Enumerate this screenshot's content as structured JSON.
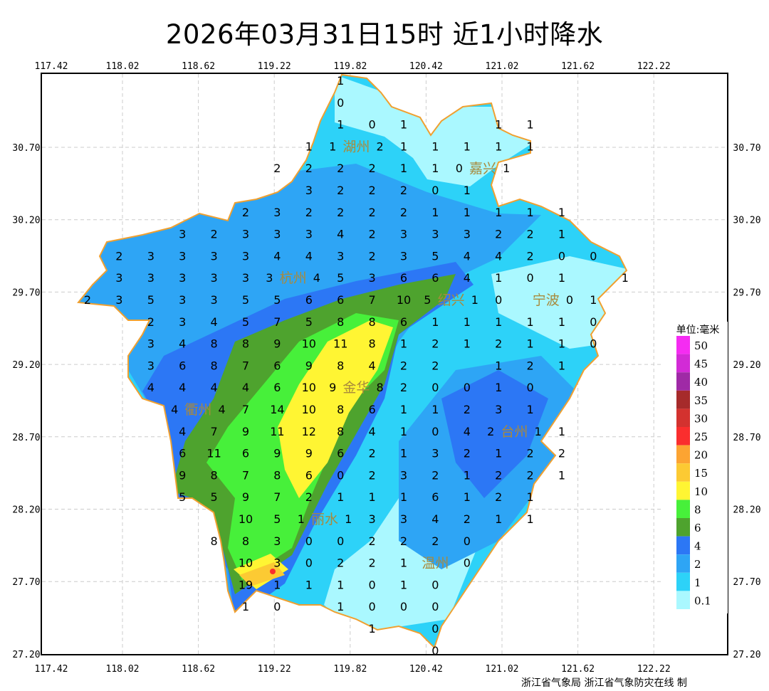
{
  "title": "2026年03月31日15时  近1小时降水",
  "footer": "浙江省气象局 浙江省气象防灾在线 制",
  "axes": {
    "lon_ticks": [
      "117.42",
      "118.02",
      "118.62",
      "119.22",
      "119.82",
      "120.42",
      "121.02",
      "121.62",
      "122.22"
    ],
    "lat_ticks": [
      "30.70",
      "30.20",
      "29.70",
      "29.20",
      "28.70",
      "28.20",
      "27.70",
      "27.20"
    ],
    "grid": true
  },
  "cities": [
    "湖州",
    "嘉兴",
    "杭州",
    "绍兴",
    "宁波",
    "金华",
    "衢州",
    "台州",
    "丽水",
    "温州"
  ],
  "legend": {
    "unit": "单位:毫米",
    "levels": [
      {
        "label": "50",
        "color": "#f52cf2"
      },
      {
        "label": "45",
        "color": "#d22bd6"
      },
      {
        "label": "40",
        "color": "#9f2aa6"
      },
      {
        "label": "35",
        "color": "#a62b2b"
      },
      {
        "label": "30",
        "color": "#d3322f"
      },
      {
        "label": "25",
        "color": "#fa2e2e"
      },
      {
        "label": "20",
        "color": "#fca432"
      },
      {
        "label": "15",
        "color": "#fcca33"
      },
      {
        "label": "10",
        "color": "#fff533"
      },
      {
        "label": "8",
        "color": "#47f03a"
      },
      {
        "label": "6",
        "color": "#4ea32e"
      },
      {
        "label": "4",
        "color": "#2c77f5"
      },
      {
        "label": "2",
        "color": "#2ea5f5"
      },
      {
        "label": "1",
        "color": "#2dd2f8"
      },
      {
        "label": "0.1",
        "color": "#aaf8ff"
      }
    ]
  },
  "colors": {
    "boundary": "#f0a030",
    "city_label": "#a88a3c",
    "grid": "#cccccc"
  },
  "station_grid": [
    [
      null,
      null,
      null,
      null,
      null,
      null,
      null,
      null,
      1,
      null,
      null,
      null,
      null,
      null,
      null,
      null,
      null,
      null
    ],
    [
      null,
      null,
      null,
      null,
      null,
      null,
      null,
      null,
      0,
      null,
      null,
      null,
      null,
      null,
      null,
      null,
      null,
      null
    ],
    [
      null,
      null,
      null,
      null,
      null,
      null,
      null,
      null,
      1,
      0,
      1,
      null,
      null,
      1,
      1,
      null,
      null,
      null
    ],
    [
      null,
      null,
      null,
      null,
      null,
      null,
      null,
      1,
      1,
      2,
      1,
      1,
      1,
      1,
      1,
      null,
      null,
      null
    ],
    [
      null,
      null,
      null,
      null,
      null,
      null,
      2,
      2,
      2,
      2,
      1,
      1,
      0,
      1,
      null,
      null,
      null,
      null
    ],
    [
      null,
      null,
      null,
      null,
      null,
      null,
      null,
      3,
      2,
      2,
      2,
      0,
      1,
      null,
      null,
      null,
      null,
      null
    ],
    [
      null,
      null,
      null,
      null,
      null,
      2,
      3,
      2,
      2,
      2,
      2,
      1,
      1,
      1,
      1,
      1,
      null,
      null
    ],
    [
      null,
      null,
      null,
      3,
      2,
      3,
      3,
      3,
      4,
      2,
      3,
      3,
      3,
      2,
      2,
      1,
      null,
      null
    ],
    [
      null,
      2,
      3,
      3,
      3,
      3,
      4,
      4,
      3,
      2,
      3,
      5,
      4,
      4,
      2,
      0,
      0,
      null
    ],
    [
      null,
      3,
      3,
      3,
      3,
      3,
      3,
      4,
      5,
      3,
      6,
      6,
      4,
      1,
      0,
      1,
      null,
      1
    ],
    [
      2,
      3,
      5,
      3,
      3,
      5,
      5,
      6,
      6,
      7,
      10,
      5,
      1,
      0,
      null,
      0,
      1,
      null
    ],
    [
      null,
      null,
      2,
      3,
      4,
      5,
      7,
      5,
      8,
      8,
      6,
      1,
      1,
      1,
      1,
      1,
      0,
      null
    ],
    [
      null,
      null,
      3,
      4,
      8,
      8,
      9,
      10,
      11,
      8,
      1,
      2,
      1,
      2,
      1,
      1,
      0,
      null
    ],
    [
      null,
      null,
      3,
      6,
      8,
      7,
      6,
      9,
      8,
      4,
      2,
      2,
      null,
      1,
      2,
      1,
      null,
      null
    ],
    [
      null,
      null,
      4,
      4,
      4,
      4,
      6,
      10,
      9,
      8,
      2,
      0,
      0,
      1,
      0,
      null,
      null,
      null
    ],
    [
      null,
      null,
      null,
      4,
      4,
      7,
      14,
      10,
      8,
      6,
      1,
      1,
      2,
      3,
      1,
      null,
      null,
      null
    ],
    [
      null,
      null,
      null,
      4,
      7,
      9,
      11,
      12,
      8,
      4,
      1,
      0,
      4,
      2,
      1,
      1,
      null,
      null
    ],
    [
      null,
      null,
      null,
      6,
      11,
      6,
      9,
      9,
      6,
      2,
      1,
      3,
      2,
      1,
      2,
      2,
      null,
      null
    ],
    [
      null,
      null,
      null,
      9,
      8,
      7,
      8,
      6,
      0,
      2,
      3,
      2,
      1,
      2,
      2,
      1,
      null,
      null
    ],
    [
      null,
      null,
      null,
      5,
      5,
      9,
      7,
      2,
      1,
      1,
      1,
      6,
      1,
      2,
      1,
      null,
      null,
      null
    ],
    [
      null,
      null,
      null,
      null,
      null,
      10,
      5,
      1,
      1,
      3,
      3,
      4,
      2,
      1,
      1,
      null,
      null,
      null
    ],
    [
      null,
      null,
      null,
      null,
      8,
      8,
      3,
      0,
      0,
      2,
      2,
      2,
      0,
      null,
      null,
      null,
      null,
      null
    ],
    [
      null,
      null,
      null,
      null,
      null,
      10,
      3,
      0,
      2,
      2,
      1,
      null,
      0,
      null,
      null,
      null,
      null,
      null
    ],
    [
      null,
      null,
      null,
      null,
      null,
      19,
      1,
      1,
      1,
      0,
      1,
      0,
      null,
      null,
      null,
      null,
      null,
      null
    ],
    [
      null,
      null,
      null,
      null,
      null,
      1,
      0,
      null,
      1,
      0,
      0,
      0,
      null,
      null,
      null,
      null,
      null,
      null
    ],
    [
      null,
      null,
      null,
      null,
      null,
      null,
      null,
      null,
      null,
      1,
      null,
      0,
      null,
      null,
      null,
      null,
      null,
      null
    ],
    [
      null,
      null,
      null,
      null,
      null,
      null,
      null,
      null,
      null,
      null,
      null,
      0,
      null,
      null,
      null,
      null,
      null,
      null
    ]
  ]
}
